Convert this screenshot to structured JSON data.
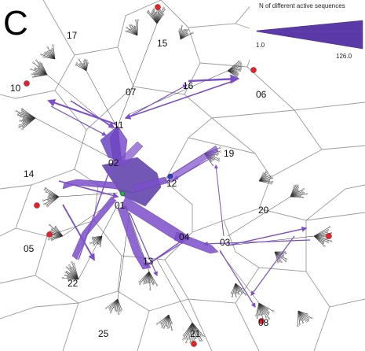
{
  "panel": {
    "letter": "C"
  },
  "legend": {
    "title": "N of different active sequences",
    "min_label": "1.0",
    "max_label": "126.0",
    "min_value": 1.0,
    "max_value": 126.0,
    "color": "#5b3aa8"
  },
  "colors": {
    "cell_border": "#9a9a9a",
    "tree_branch": "#333333",
    "flow_arrow": "#7b4fc9",
    "flow_arrow_dark": "#5b3aa8",
    "marker_red": "#e8202a",
    "marker_green": "#2aa84a",
    "marker_blue": "#2a3fb8"
  },
  "regions": [
    {
      "id": "01",
      "label": "01"
    },
    {
      "id": "02",
      "label": "02"
    },
    {
      "id": "03",
      "label": "03"
    },
    {
      "id": "04",
      "label": "04"
    },
    {
      "id": "05",
      "label": "05"
    },
    {
      "id": "06",
      "label": "06"
    },
    {
      "id": "07",
      "label": "07"
    },
    {
      "id": "08",
      "label": "08"
    },
    {
      "id": "10",
      "label": "10"
    },
    {
      "id": "11",
      "label": "11"
    },
    {
      "id": "12",
      "label": "12"
    },
    {
      "id": "13",
      "label": "13"
    },
    {
      "id": "14",
      "label": "14"
    },
    {
      "id": "15",
      "label": "15"
    },
    {
      "id": "16",
      "label": "16"
    },
    {
      "id": "17",
      "label": "17"
    },
    {
      "id": "19",
      "label": "19"
    },
    {
      "id": "20",
      "label": "20"
    },
    {
      "id": "21",
      "label": "21"
    },
    {
      "id": "22",
      "label": "22"
    },
    {
      "id": "25",
      "label": "25"
    }
  ]
}
